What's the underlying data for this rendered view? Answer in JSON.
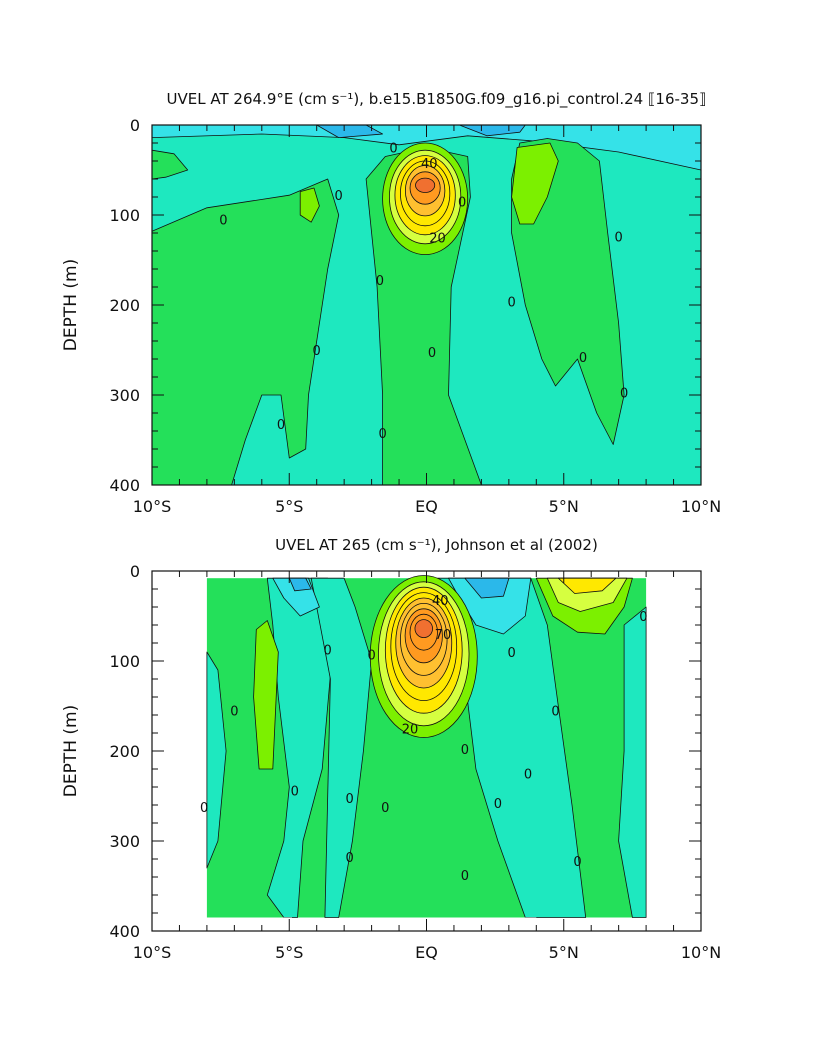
{
  "palette": {
    "n10": "#2bb8ea",
    "n0": "#35e2e8",
    "z0": "#1ee8bf",
    "p0": "#24e05a",
    "p10": "#7cf000",
    "p20": "#d6ff40",
    "p30": "#ffe800",
    "p40": "#ffc030",
    "p50": "#ff9a20",
    "p60": "#f07030"
  },
  "chart_data": [
    {
      "type": "heatmap",
      "title": "UVEL AT 264.9°E (cm s⁻¹), b.e15.B1850G.f09_g16.pi_control.24 ⟦16-35⟧",
      "xlabel": "",
      "ylabel": "DEPTH (m)",
      "xlim": [
        -10,
        10
      ],
      "ylim": [
        400,
        0
      ],
      "x_ticks": [
        "10°S",
        "5°S",
        "EQ",
        "5°N",
        "10°N"
      ],
      "y_ticks": [
        "0",
        "100",
        "200",
        "300",
        "400"
      ],
      "contour_labels": [
        {
          "text": "0",
          "x": -7.4,
          "y": 105
        },
        {
          "text": "0",
          "x": -3.2,
          "y": 78
        },
        {
          "text": "0",
          "x": -4.0,
          "y": 250
        },
        {
          "text": "0",
          "x": -5.3,
          "y": 332
        },
        {
          "text": "0",
          "x": -1.7,
          "y": 172
        },
        {
          "text": "0",
          "x": -1.6,
          "y": 342
        },
        {
          "text": "0",
          "x": -1.2,
          "y": 25
        },
        {
          "text": "40",
          "x": 0.1,
          "y": 42
        },
        {
          "text": "20",
          "x": 0.4,
          "y": 125
        },
        {
          "text": "0",
          "x": 1.3,
          "y": 85
        },
        {
          "text": "0",
          "x": 0.2,
          "y": 252
        },
        {
          "text": "0",
          "x": 3.1,
          "y": 196
        },
        {
          "text": "0",
          "x": 5.7,
          "y": 258
        },
        {
          "text": "0",
          "x": 7.0,
          "y": 124
        },
        {
          "text": "0",
          "x": 7.2,
          "y": 297
        }
      ]
    },
    {
      "type": "heatmap",
      "title": "UVEL AT 265 (cm s⁻¹), Johnson et al (2002)",
      "xlabel": "",
      "ylabel": "DEPTH (m)",
      "xlim": [
        -10,
        10
      ],
      "ylim": [
        400,
        0
      ],
      "x_ticks": [
        "10°S",
        "5°S",
        "EQ",
        "5°N",
        "10°N"
      ],
      "y_ticks": [
        "0",
        "100",
        "200",
        "300",
        "400"
      ],
      "contour_labels": [
        {
          "text": "0",
          "x": -7.0,
          "y": 155
        },
        {
          "text": "0",
          "x": -8.1,
          "y": 262
        },
        {
          "text": "0",
          "x": -3.6,
          "y": 87
        },
        {
          "text": "0",
          "x": -4.8,
          "y": 244
        },
        {
          "text": "0",
          "x": -2.8,
          "y": 252
        },
        {
          "text": "0",
          "x": -2.8,
          "y": 318
        },
        {
          "text": "0",
          "x": -2.0,
          "y": 93
        },
        {
          "text": "0",
          "x": -1.5,
          "y": 262
        },
        {
          "text": "20",
          "x": -0.6,
          "y": 175
        },
        {
          "text": "70",
          "x": 0.6,
          "y": 70
        },
        {
          "text": "40",
          "x": 0.5,
          "y": 32
        },
        {
          "text": "0",
          "x": 1.4,
          "y": 198
        },
        {
          "text": "0",
          "x": 1.4,
          "y": 338
        },
        {
          "text": "0",
          "x": 3.1,
          "y": 90
        },
        {
          "text": "0",
          "x": 2.6,
          "y": 258
        },
        {
          "text": "0",
          "x": 3.7,
          "y": 225
        },
        {
          "text": "0",
          "x": 4.7,
          "y": 155
        },
        {
          "text": "0",
          "x": 5.5,
          "y": 322
        },
        {
          "text": "0",
          "x": 7.9,
          "y": 50
        }
      ]
    }
  ]
}
